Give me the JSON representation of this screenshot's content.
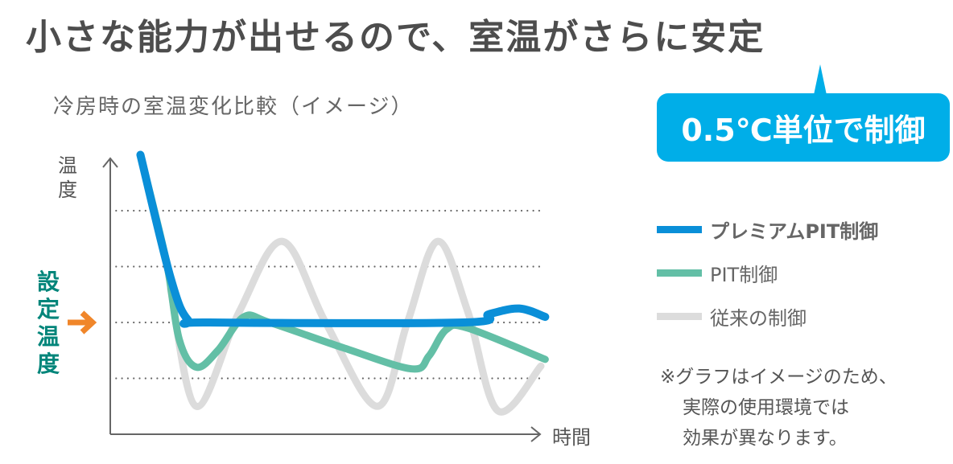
{
  "headline": "小さな能力が出せるので、室温がさらに安定",
  "callout": {
    "text": "0.5℃単位で制御",
    "color": "#00aee8"
  },
  "note": [
    "※グラフはイメージのため、",
    "実際の使用環境では",
    "効果が異なります。"
  ],
  "chart_data": {
    "type": "line",
    "title": "冷房時の室温変化比較（イメージ）",
    "xlabel": "時間",
    "ylabel": "温度",
    "setpoint_label": "設定温度",
    "setpoint_marker_color": "#f0862a",
    "axis_tick_labels": false,
    "grid": "dotted horizontal",
    "xlim": [
      0,
      10
    ],
    "ylim": [
      -2,
      3
    ],
    "gridlines_y": [
      2,
      1,
      0,
      -1
    ],
    "setpoint_y": 0,
    "legend_position": "right",
    "series": [
      {
        "name": "従来の制御",
        "color": "#dcdcdc",
        "points": [
          [
            1.4,
            0.6
          ],
          [
            2.0,
            -1.5
          ],
          [
            3.0,
            0.2
          ],
          [
            4.0,
            1.45
          ],
          [
            5.0,
            0.0
          ],
          [
            6.2,
            -1.5
          ],
          [
            6.9,
            0.0
          ],
          [
            7.6,
            1.45
          ],
          [
            8.3,
            0.2
          ],
          [
            9.0,
            -1.58
          ],
          [
            10.0,
            -0.78
          ]
        ]
      },
      {
        "name": "PIT制御",
        "color": "#63bfa6",
        "points": [
          [
            0.7,
            3.0
          ],
          [
            1.3,
            1.1
          ],
          [
            1.6,
            -0.3
          ],
          [
            2.0,
            -0.8
          ],
          [
            2.5,
            -0.5
          ],
          [
            3.1,
            0.1
          ],
          [
            3.7,
            0.0
          ],
          [
            5.4,
            -0.45
          ],
          [
            7.0,
            -0.83
          ],
          [
            7.4,
            -0.6
          ],
          [
            7.8,
            -0.13
          ],
          [
            8.3,
            -0.1
          ],
          [
            10.1,
            -0.66
          ]
        ]
      },
      {
        "name": "プレミアムPIT制御",
        "color": "#0a8fd8",
        "points": [
          [
            0.7,
            3.0
          ],
          [
            1.4,
            0.8
          ],
          [
            1.8,
            0.05
          ],
          [
            2.3,
            0.0
          ],
          [
            8.2,
            0.0
          ],
          [
            8.8,
            0.15
          ],
          [
            9.5,
            0.25
          ],
          [
            10.1,
            0.1
          ]
        ]
      }
    ]
  }
}
